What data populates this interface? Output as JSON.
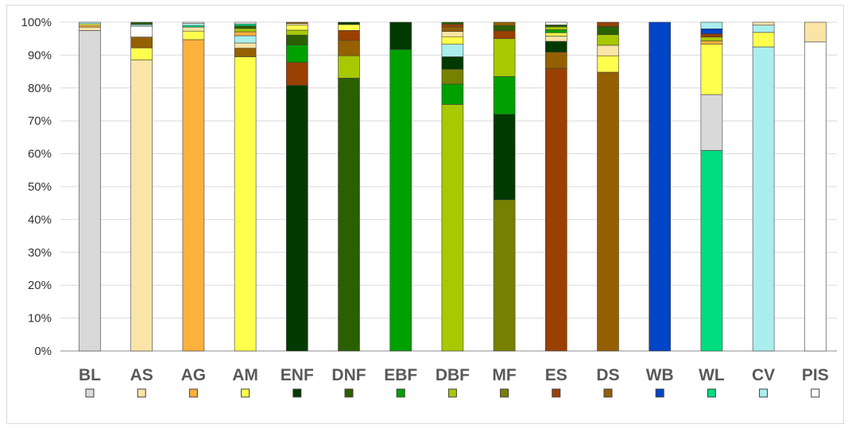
{
  "chart_data": {
    "type": "bar",
    "stacked": true,
    "categories": [
      "BL",
      "AS",
      "AG",
      "AM",
      "ENF",
      "DNF",
      "EBF",
      "DBF",
      "MF",
      "ES",
      "DS",
      "WB",
      "WL",
      "CV",
      "PIS"
    ],
    "ylim": [
      0,
      100
    ],
    "ytick_labels": [
      "0%",
      "10%",
      "20%",
      "30%",
      "40%",
      "50%",
      "60%",
      "70%",
      "80%",
      "90%",
      "100%"
    ],
    "grid": "horizontal",
    "legend": "colored markers below category labels",
    "class_colors": {
      "BL": "#d9d9d9",
      "AS": "#fae4a6",
      "AG": "#fbb13c",
      "AM": "#ffff4d",
      "ENF": "#003a00",
      "DNF": "#2a6000",
      "EBF": "#00a000",
      "DBF": "#a8c800",
      "MF": "#788000",
      "ES": "#9a4000",
      "DS": "#946000",
      "WB": "#0044c8",
      "WL": "#00dd80",
      "CV": "#aaeeee",
      "PIS": "#ffffff"
    },
    "stacks": [
      {
        "category": "BL",
        "segments": [
          [
            "BL",
            97.5
          ],
          [
            "AS",
            1.0
          ],
          [
            "AG",
            0.5
          ],
          [
            "AM",
            0.5
          ],
          [
            "CV",
            0.5
          ]
        ]
      },
      {
        "category": "AS",
        "segments": [
          [
            "AS",
            88.5
          ],
          [
            "AM",
            3.7
          ],
          [
            "DS",
            3.3
          ],
          [
            "PIS",
            3.3
          ],
          [
            "CV",
            0.5
          ],
          [
            "DNF",
            0.7
          ]
        ]
      },
      {
        "category": "AG",
        "segments": [
          [
            "AG",
            94.7
          ],
          [
            "AM",
            2.6
          ],
          [
            "AS",
            1.2
          ],
          [
            "WL",
            0.5
          ],
          [
            "CV",
            0.6
          ],
          [
            "PIS",
            0.4
          ]
        ]
      },
      {
        "category": "AM",
        "segments": [
          [
            "AM",
            89.5
          ],
          [
            "DS",
            2.6
          ],
          [
            "AS",
            1.6
          ],
          [
            "CV",
            2.2
          ],
          [
            "AG",
            1.2
          ],
          [
            "DBF",
            1.0
          ],
          [
            "DNF",
            0.8
          ],
          [
            "WL",
            0.6
          ],
          [
            "PIS",
            0.5
          ]
        ]
      },
      {
        "category": "ENF",
        "segments": [
          [
            "ENF",
            80.8
          ],
          [
            "ES",
            7.0
          ],
          [
            "EBF",
            5.3
          ],
          [
            "DNF",
            3.0
          ],
          [
            "DBF",
            1.5
          ],
          [
            "AM",
            1.5
          ],
          [
            "AS",
            0.5
          ],
          [
            "DS",
            0.4
          ]
        ]
      },
      {
        "category": "DNF",
        "segments": [
          [
            "DNF",
            83.0
          ],
          [
            "DBF",
            6.8
          ],
          [
            "DS",
            4.7
          ],
          [
            "ES",
            3.0
          ],
          [
            "AM",
            1.8
          ],
          [
            "ENF",
            0.7
          ]
        ]
      },
      {
        "category": "EBF",
        "segments": [
          [
            "EBF",
            91.7
          ],
          [
            "ENF",
            8.3
          ]
        ]
      },
      {
        "category": "DBF",
        "segments": [
          [
            "DBF",
            75.0
          ],
          [
            "EBF",
            6.2
          ],
          [
            "MF",
            4.5
          ],
          [
            "ENF",
            3.8
          ],
          [
            "CV",
            3.8
          ],
          [
            "AM",
            2.3
          ],
          [
            "AS",
            1.6
          ],
          [
            "DS",
            1.4
          ],
          [
            "ES",
            0.8
          ],
          [
            "DNF",
            0.6
          ]
        ]
      },
      {
        "category": "MF",
        "segments": [
          [
            "MF",
            46.0
          ],
          [
            "ENF",
            26.0
          ],
          [
            "EBF",
            11.5
          ],
          [
            "DBF",
            11.5
          ],
          [
            "ES",
            2.4
          ],
          [
            "DNF",
            1.6
          ],
          [
            "DS",
            1.0
          ]
        ]
      },
      {
        "category": "ES",
        "segments": [
          [
            "ES",
            86.0
          ],
          [
            "DS",
            4.9
          ],
          [
            "ENF",
            3.3
          ],
          [
            "AS",
            1.6
          ],
          [
            "AM",
            1.0
          ],
          [
            "EBF",
            0.9
          ],
          [
            "DBF",
            0.9
          ],
          [
            "DNF",
            0.6
          ],
          [
            "PIS",
            0.8
          ]
        ]
      },
      {
        "category": "DS",
        "segments": [
          [
            "DS",
            84.8
          ],
          [
            "AM",
            5.0
          ],
          [
            "AS",
            3.2
          ],
          [
            "DBF",
            3.2
          ],
          [
            "DNF",
            2.5
          ],
          [
            "ES",
            1.3
          ]
        ]
      },
      {
        "category": "WB",
        "segments": [
          [
            "WB",
            100.0
          ]
        ]
      },
      {
        "category": "WL",
        "segments": [
          [
            "WL",
            61.0
          ],
          [
            "BL",
            17.0
          ],
          [
            "AM",
            15.3
          ],
          [
            "AG",
            1.0
          ],
          [
            "DBF",
            1.2
          ],
          [
            "ES",
            1.0
          ],
          [
            "WB",
            1.5
          ],
          [
            "CV",
            2.0
          ]
        ]
      },
      {
        "category": "CV",
        "segments": [
          [
            "CV",
            92.5
          ],
          [
            "AM",
            4.4
          ],
          [
            "CV",
            2.2
          ],
          [
            "AS",
            0.9
          ]
        ]
      },
      {
        "category": "PIS",
        "segments": [
          [
            "PIS",
            94.0
          ],
          [
            "AS",
            6.0
          ]
        ]
      }
    ]
  }
}
